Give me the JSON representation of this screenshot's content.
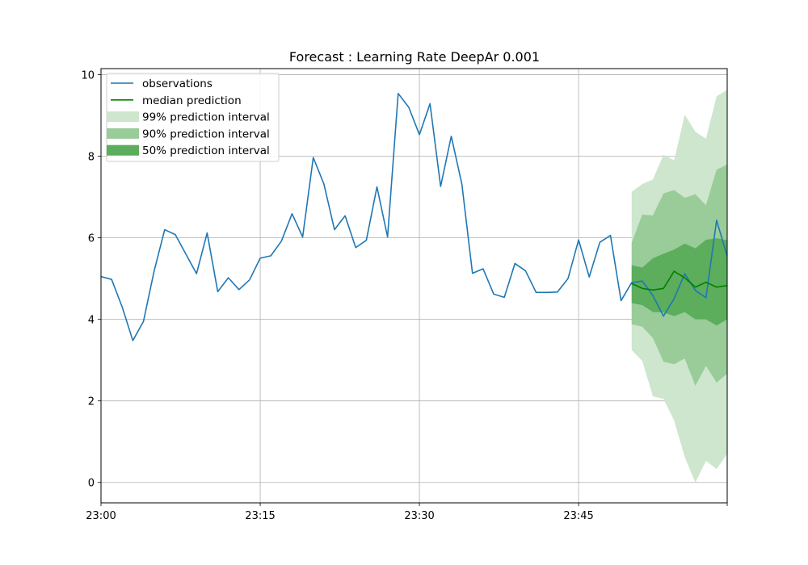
{
  "chart_data": {
    "type": "line",
    "title": "Forecast : Learning Rate DeepAr 0.001",
    "xlabel": "",
    "ylabel": "",
    "x_tick_labels": [
      "23:00",
      "23:15",
      "23:30",
      "23:45"
    ],
    "y_tick_labels": [
      "0",
      "2",
      "4",
      "6",
      "8",
      "10"
    ],
    "ylim": [
      -0.5,
      10.15
    ],
    "xlim_minutes": [
      0,
      59
    ],
    "grid": true,
    "legend_position": "top-left",
    "legend": [
      {
        "label": "observations",
        "kind": "line",
        "color": "#1f77b4"
      },
      {
        "label": "median prediction",
        "kind": "line",
        "color": "#008000"
      },
      {
        "label": "99% prediction interval",
        "kind": "patch",
        "color": "#cde6cd"
      },
      {
        "label": "90% prediction interval",
        "kind": "patch",
        "color": "#99cc99"
      },
      {
        "label": "50% prediction interval",
        "kind": "patch",
        "color": "#5cad5c"
      }
    ],
    "series": [
      {
        "name": "observations",
        "color": "#1f77b4",
        "x_minutes": [
          0,
          1,
          2,
          3,
          4,
          5,
          6,
          7,
          8,
          9,
          10,
          11,
          12,
          13,
          14,
          15,
          16,
          17,
          18,
          19,
          20,
          21,
          22,
          23,
          24,
          25,
          26,
          27,
          28,
          29,
          30,
          31,
          32,
          33,
          34,
          35,
          36,
          37,
          38,
          39,
          40,
          41,
          42,
          43,
          44,
          45,
          46,
          47,
          48,
          49,
          50,
          51,
          52,
          53,
          54,
          55,
          56,
          57,
          58,
          59
        ],
        "values": [
          5.05,
          4.98,
          4.3,
          3.48,
          3.95,
          5.18,
          6.2,
          6.08,
          5.6,
          5.12,
          6.12,
          4.68,
          5.02,
          4.73,
          4.97,
          5.5,
          5.56,
          5.92,
          6.59,
          6.02,
          7.97,
          7.32,
          6.2,
          6.54,
          5.76,
          5.94,
          7.25,
          6.02,
          9.54,
          9.2,
          8.53,
          9.29,
          7.26,
          8.49,
          7.32,
          5.13,
          5.24,
          4.62,
          4.54,
          5.37,
          5.19,
          4.66,
          4.66,
          4.67,
          5.0,
          5.95,
          5.04,
          5.89,
          6.06,
          4.46,
          4.9,
          4.94,
          4.58,
          4.08,
          4.51,
          5.12,
          4.71,
          4.53,
          6.43,
          5.55
        ]
      },
      {
        "name": "median prediction",
        "color": "#008000",
        "x_minutes": [
          50,
          51,
          52,
          53,
          54,
          55,
          56,
          57,
          58,
          59
        ],
        "values": [
          4.88,
          4.76,
          4.72,
          4.76,
          5.18,
          5.02,
          4.79,
          4.91,
          4.79,
          4.83
        ]
      }
    ],
    "intervals": [
      {
        "name": "99% prediction interval",
        "color": "#cde6cd",
        "x_minutes": [
          50,
          51,
          52,
          53,
          54,
          55,
          56,
          57,
          58,
          59
        ],
        "upper": [
          7.13,
          7.32,
          7.43,
          8.04,
          7.9,
          9.02,
          8.6,
          8.43,
          9.47,
          9.63
        ],
        "lower": [
          3.25,
          2.98,
          2.11,
          2.05,
          1.52,
          0.62,
          0.0,
          0.53,
          0.33,
          0.7
        ]
      },
      {
        "name": "90% prediction interval",
        "color": "#99cc99",
        "x_minutes": [
          50,
          51,
          52,
          53,
          54,
          55,
          56,
          57,
          58,
          59
        ],
        "upper": [
          5.88,
          6.57,
          6.55,
          7.09,
          7.17,
          6.98,
          7.07,
          6.8,
          7.67,
          7.8
        ],
        "lower": [
          3.88,
          3.82,
          3.54,
          2.96,
          2.9,
          3.04,
          2.37,
          2.86,
          2.45,
          2.67
        ]
      },
      {
        "name": "50% prediction interval",
        "color": "#5cad5c",
        "x_minutes": [
          50,
          51,
          52,
          53,
          54,
          55,
          56,
          57,
          58,
          59
        ],
        "upper": [
          5.33,
          5.27,
          5.5,
          5.61,
          5.71,
          5.86,
          5.74,
          5.95,
          5.99,
          5.94
        ],
        "lower": [
          4.4,
          4.35,
          4.18,
          4.17,
          4.08,
          4.18,
          4.0,
          4.0,
          3.85,
          4.0
        ]
      }
    ]
  }
}
